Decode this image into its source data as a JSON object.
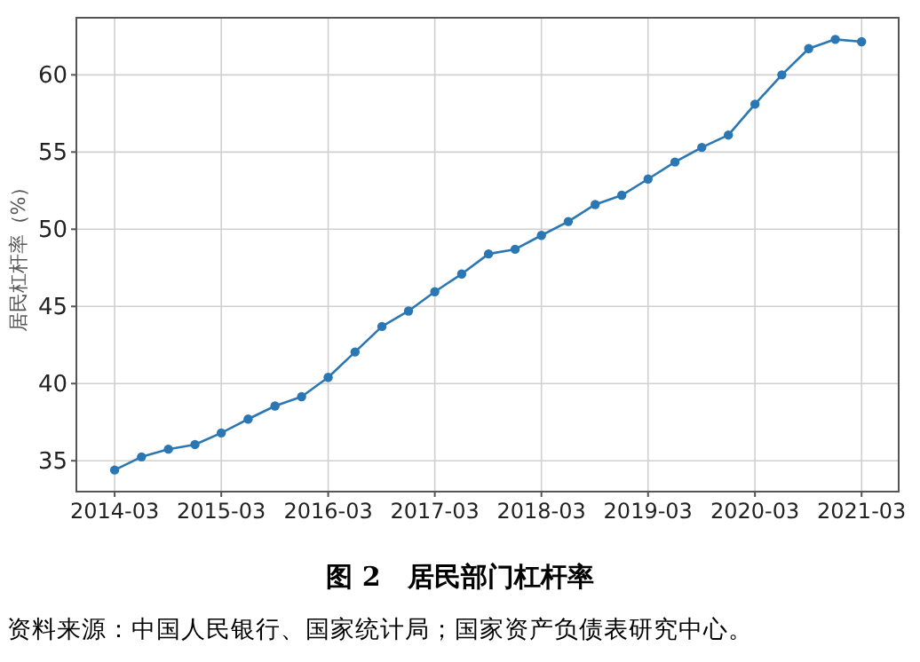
{
  "chart_data": {
    "type": "line",
    "title": "图 2　居民部门杠杆率",
    "ylabel": "居民杠杆率（%）",
    "annotations": [
      "资料来源：中国人民银行、国家统计局；国家资产负债表研究中心。"
    ],
    "x": [
      "2014-03",
      "2014-06",
      "2014-09",
      "2014-12",
      "2015-03",
      "2015-06",
      "2015-09",
      "2015-12",
      "2016-03",
      "2016-06",
      "2016-09",
      "2016-12",
      "2017-03",
      "2017-06",
      "2017-09",
      "2017-12",
      "2018-03",
      "2018-06",
      "2018-09",
      "2018-12",
      "2019-03",
      "2019-06",
      "2019-09",
      "2019-12",
      "2020-03",
      "2020-06",
      "2020-09",
      "2020-12",
      "2021-03"
    ],
    "series": [
      {
        "color": "#2b77b3",
        "values": [
          34.4,
          35.25,
          35.75,
          36.05,
          36.8,
          37.7,
          38.55,
          39.15,
          40.4,
          42.05,
          43.7,
          44.7,
          45.95,
          47.1,
          48.4,
          48.7,
          49.6,
          50.5,
          51.6,
          52.2,
          53.25,
          54.35,
          55.3,
          56.1,
          58.1,
          60.0,
          61.7,
          62.3,
          62.15
        ]
      }
    ],
    "xlim": [
      "2013-10-21",
      "2021-07-06"
    ],
    "xticks": [
      {
        "value": "2014-03",
        "label": "2014-03"
      },
      {
        "value": "2015-03",
        "label": "2015-03"
      },
      {
        "value": "2016-03",
        "label": "2016-03"
      },
      {
        "value": "2017-03",
        "label": "2017-03"
      },
      {
        "value": "2018-03",
        "label": "2018-03"
      },
      {
        "value": "2019-03",
        "label": "2019-03"
      },
      {
        "value": "2020-03",
        "label": "2020-03"
      },
      {
        "value": "2021-03",
        "label": "2021-03"
      }
    ],
    "ylim": [
      33,
      63.7
    ],
    "yticks": [
      35,
      40,
      45,
      50,
      55,
      60
    ],
    "grid": true,
    "marker": "circle",
    "line_style": "solid"
  }
}
